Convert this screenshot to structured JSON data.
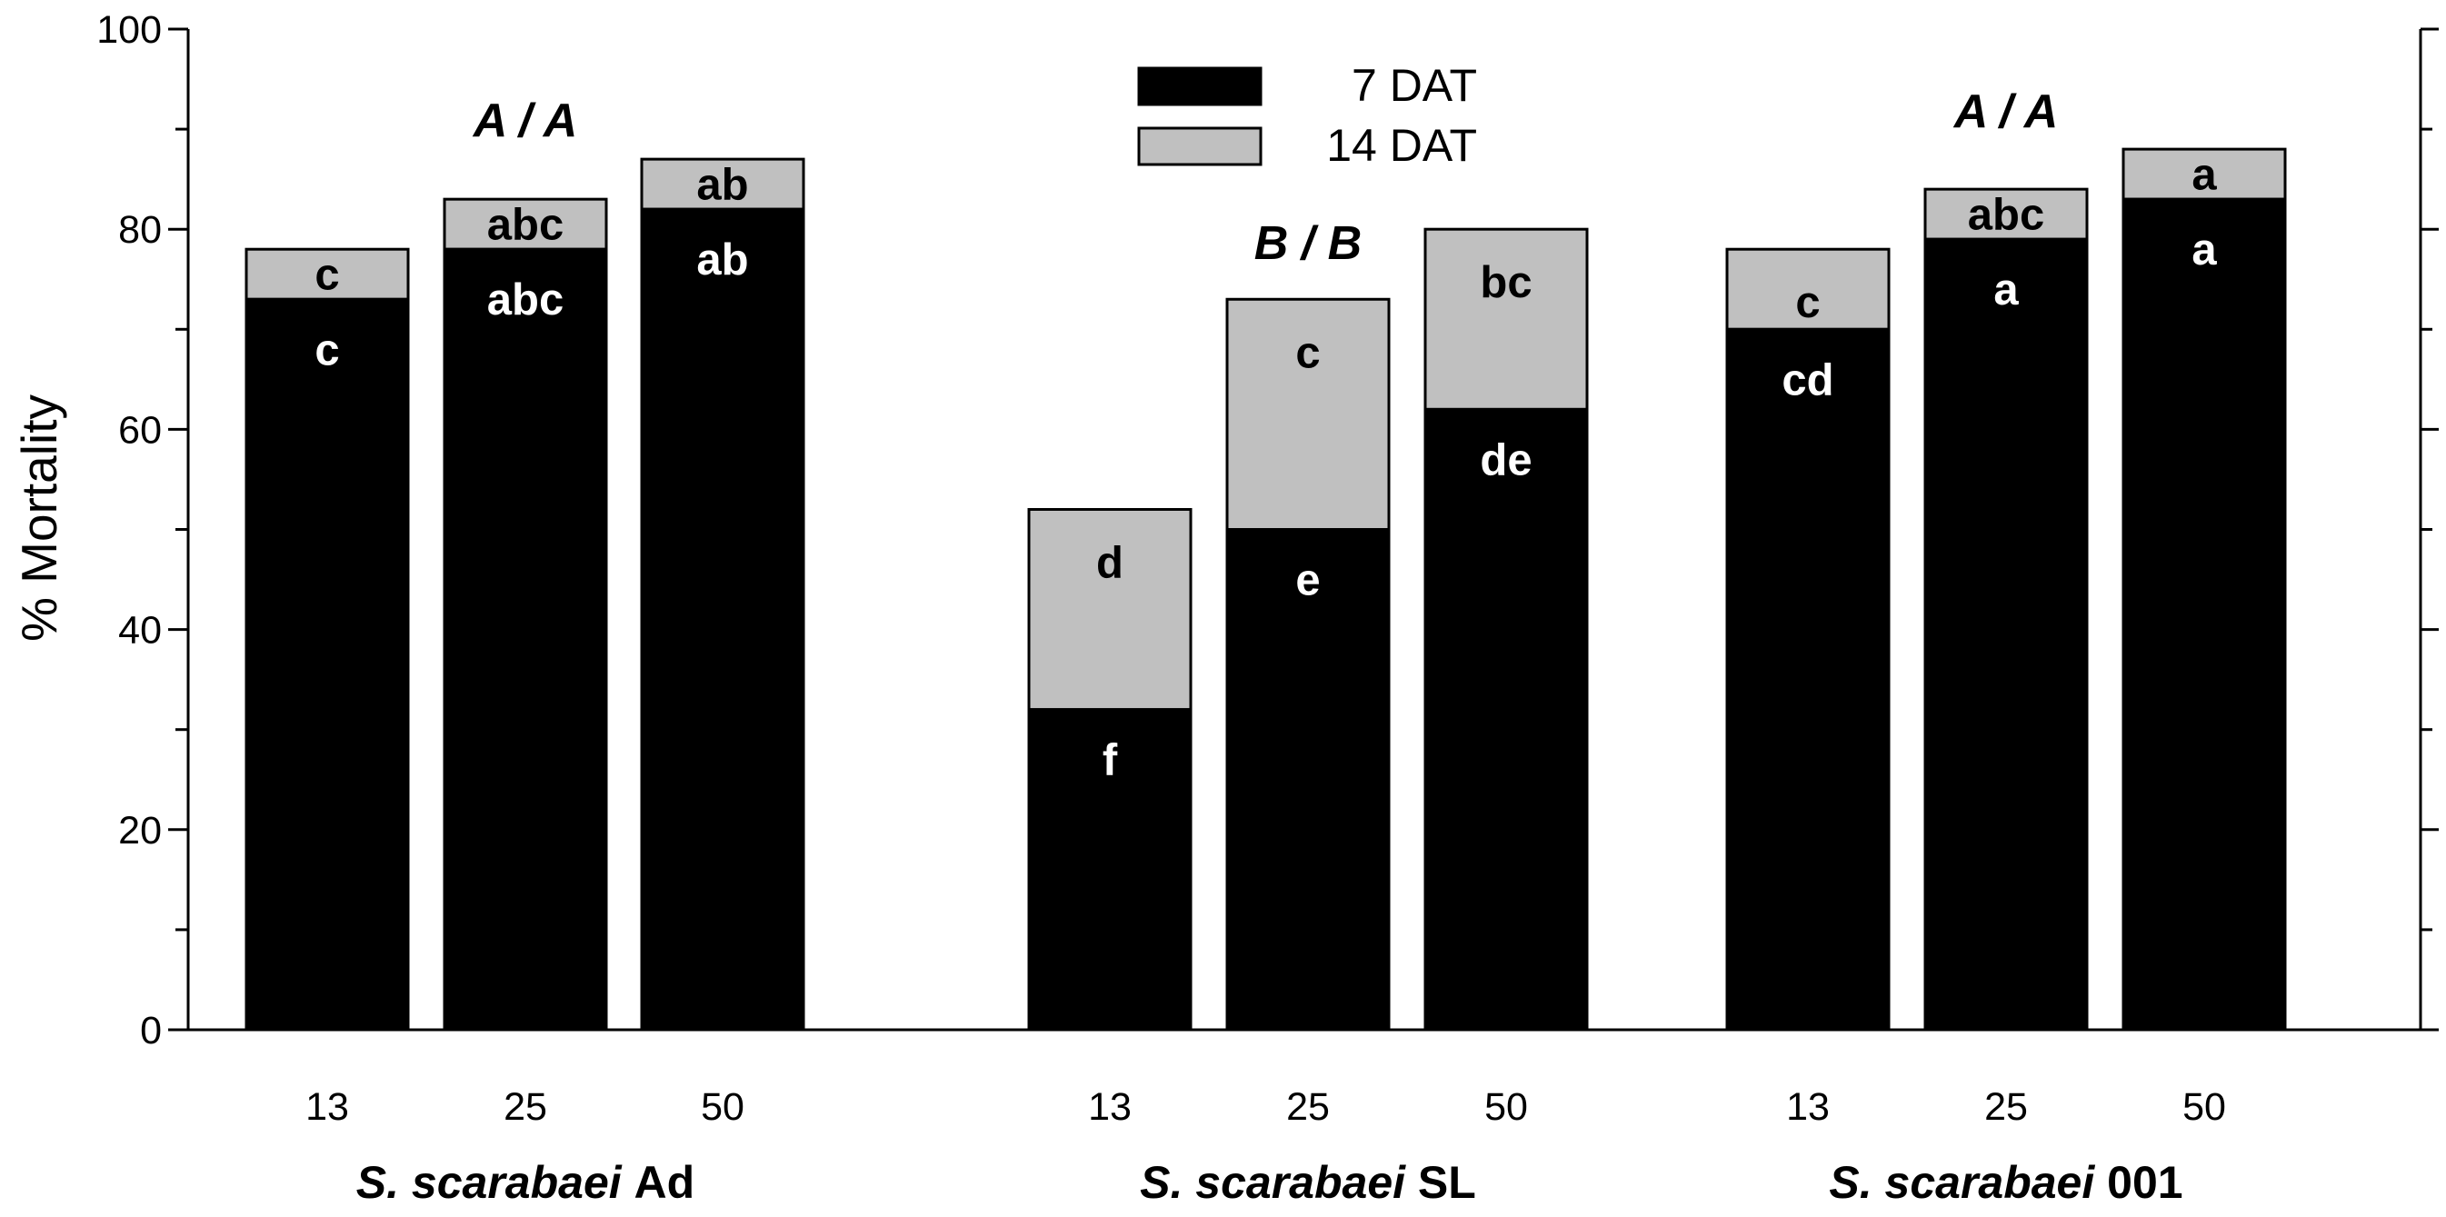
{
  "chart_data": {
    "type": "bar",
    "stacked": true,
    "ylabel": "% Mortality",
    "ylim": [
      0,
      100
    ],
    "yticks": [
      0,
      20,
      40,
      60,
      80,
      100
    ],
    "y_minor_step": 10,
    "legend": {
      "placement": "top-center",
      "entries": [
        {
          "name": "7 DAT",
          "color": "#000000"
        },
        {
          "name": "14 DAT",
          "color": "#c0c0c0"
        }
      ]
    },
    "groups": [
      {
        "name_italic": "S. scarabaei",
        "name_rest": " Ad",
        "overall_label": "A / A",
        "bars": [
          {
            "category": "13",
            "dat7": 73,
            "dat14": 78,
            "label7": "c",
            "label14": "c"
          },
          {
            "category": "25",
            "dat7": 78,
            "dat14": 83,
            "label7": "abc",
            "label14": "abc"
          },
          {
            "category": "50",
            "dat7": 82,
            "dat14": 87,
            "label7": "ab",
            "label14": "ab"
          }
        ]
      },
      {
        "name_italic": "S. scarabaei",
        "name_rest": " SL",
        "overall_label": "B / B",
        "bars": [
          {
            "category": "13",
            "dat7": 32,
            "dat14": 52,
            "label7": "f",
            "label14": "d"
          },
          {
            "category": "25",
            "dat7": 50,
            "dat14": 73,
            "label7": "e",
            "label14": "c"
          },
          {
            "category": "50",
            "dat7": 62,
            "dat14": 80,
            "label7": "de",
            "label14": "bc"
          }
        ]
      },
      {
        "name_italic": "S. scarabaei",
        "name_rest": " 001",
        "overall_label": "A / A",
        "bars": [
          {
            "category": "13",
            "dat7": 70,
            "dat14": 78,
            "label7": "cd",
            "label14": "c"
          },
          {
            "category": "25",
            "dat7": 79,
            "dat14": 84,
            "label7": "a",
            "label14": "abc"
          },
          {
            "category": "50",
            "dat7": 83,
            "dat14": 88,
            "label7": "a",
            "label14": "a"
          }
        ]
      }
    ]
  }
}
